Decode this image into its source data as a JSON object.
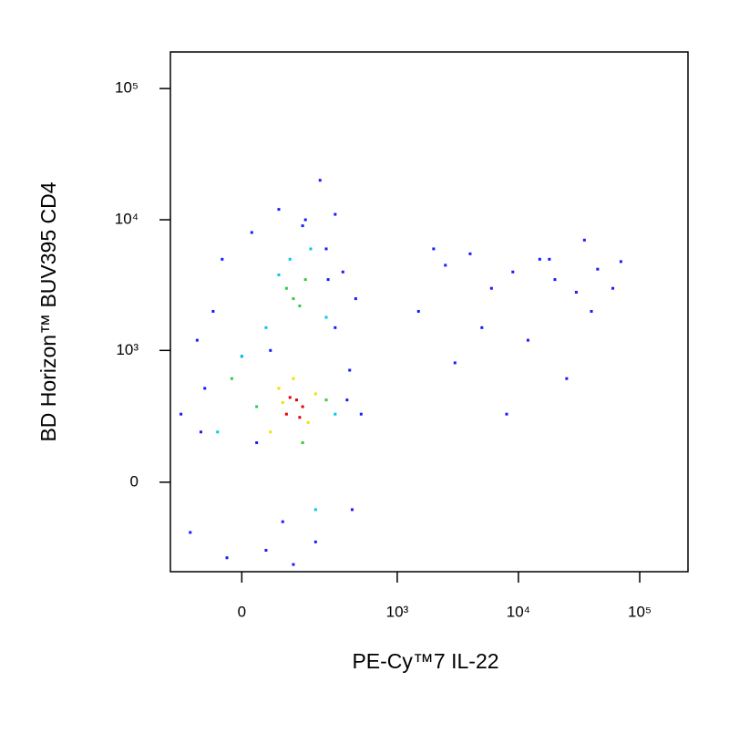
{
  "chart_data": {
    "type": "scatter",
    "xlabel": "PE-Cy™7 IL-22",
    "ylabel": "BD Horizon™ BUV395 CD4",
    "xscale": "biexponential",
    "yscale": "biexponential",
    "xlim": [
      -190,
      250000
    ],
    "ylim": [
      -460,
      190000
    ],
    "xticks": [
      0,
      {
        "value": 1000,
        "label": "10³"
      },
      {
        "value": 10000,
        "label": "10⁴"
      },
      {
        "value": 100000,
        "label": "10⁵"
      }
    ],
    "yticks": [
      0,
      {
        "value": 1000,
        "label": "10³"
      },
      {
        "value": 10000,
        "label": "10⁴"
      },
      {
        "value": 100000,
        "label": "10⁵"
      }
    ],
    "series": [
      {
        "color": "#1a1aff",
        "x": [
          -150,
          -120,
          -80,
          -60,
          -30,
          0,
          20,
          50,
          80,
          120,
          160,
          200,
          250,
          300,
          350,
          400,
          450,
          500,
          -100,
          -40,
          30,
          90,
          150,
          220,
          300,
          380,
          -90,
          60,
          260,
          420,
          1500,
          2500,
          4000,
          6000,
          9000,
          15000,
          20000,
          30000,
          45000,
          70000,
          3000,
          12000,
          25000,
          40000,
          8000,
          5000,
          18000,
          60000,
          2000,
          35000
        ],
        "y": [
          300,
          -200,
          500,
          2000,
          -350,
          900,
          8000,
          -300,
          12000,
          -400,
          10000,
          -250,
          6000,
          1500,
          4000,
          700,
          2500,
          300,
          1200,
          5000,
          150,
          -150,
          9000,
          20000,
          11000,
          400,
          200,
          1000,
          3500,
          -100,
          2000,
          4500,
          5500,
          3000,
          4000,
          5000,
          3500,
          2800,
          4200,
          4800,
          800,
          1200,
          600,
          2000,
          300,
          1500,
          5000,
          3000,
          6000,
          7000
        ]
      },
      {
        "color": "#00c8e6",
        "x": [
          -50,
          300,
          200,
          0,
          50,
          250,
          110,
          180,
          80
        ],
        "y": [
          200,
          300,
          -100,
          900,
          1500,
          1800,
          5000,
          6000,
          3800
        ]
      },
      {
        "color": "#2ecc40",
        "x": [
          30,
          250,
          150,
          -20,
          100,
          120,
          160,
          140
        ],
        "y": [
          350,
          400,
          150,
          600,
          3000,
          2500,
          3500,
          2200
        ]
      },
      {
        "color": "#f0e000",
        "x": [
          80,
          170,
          60,
          200,
          120,
          90
        ],
        "y": [
          500,
          250,
          200,
          450,
          600,
          380
        ]
      },
      {
        "color": "#e60000",
        "x": [
          100,
          130,
          150,
          110,
          140
        ],
        "y": [
          300,
          400,
          350,
          420,
          280
        ]
      }
    ]
  }
}
